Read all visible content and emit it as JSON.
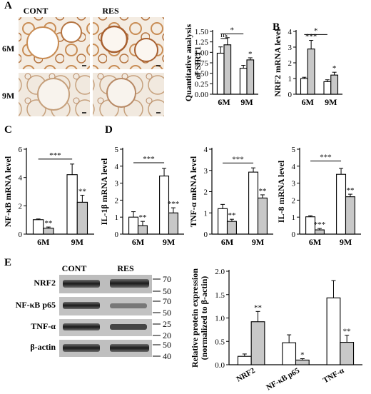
{
  "panels": {
    "A": "A",
    "B": "B",
    "C": "C",
    "D": "D",
    "E": "E"
  },
  "micrograph": {
    "col_labels": [
      "CONT",
      "RES"
    ],
    "row_labels": [
      "6M",
      "9M"
    ]
  },
  "colors": {
    "cont": "#ffffff",
    "res": "#c8c8c8",
    "stroke": "#000000"
  },
  "chart_data": [
    {
      "id": "sirt1",
      "type": "bar",
      "title": "",
      "ylabel": "Quantitative analysis of SIRT1",
      "categories": [
        "6M",
        "9M"
      ],
      "ylim": [
        0,
        1.5
      ],
      "yticks": [
        "0.00",
        "0.25",
        "0.50",
        "0.75",
        "1.00",
        "1.25",
        "1.50"
      ],
      "yticks_v": [
        0,
        0.25,
        0.5,
        0.75,
        1,
        1.25,
        1.5
      ],
      "series": [
        {
          "values": [
            0.98,
            0.62
          ],
          "err": [
            0.15,
            0.07
          ]
        },
        {
          "values": [
            1.18,
            0.82
          ],
          "err": [
            0.17,
            0.05
          ]
        }
      ],
      "sig": [
        "",
        "*"
      ],
      "brackets": [
        {
          "text": "ns",
          "from": [
            0,
            0
          ],
          "to": [
            0,
            1
          ],
          "y": 1.33
        },
        {
          "text": "*",
          "from": [
            0,
            0
          ],
          "to": [
            1,
            0
          ],
          "y": 1.44
        }
      ]
    },
    {
      "id": "nrf2",
      "type": "bar",
      "title": "",
      "ylabel": "NRF2 mRNA level",
      "categories": [
        "6M",
        "9M"
      ],
      "ylim": [
        0,
        4
      ],
      "yticks": [
        "0",
        "1",
        "2",
        "3",
        "4"
      ],
      "yticks_v": [
        0,
        1,
        2,
        3,
        4
      ],
      "series": [
        {
          "values": [
            1.0,
            0.8
          ],
          "err": [
            0.08,
            0.12
          ]
        },
        {
          "values": [
            2.88,
            1.22
          ],
          "err": [
            0.55,
            0.18
          ]
        }
      ],
      "sig": [
        "***",
        "*"
      ],
      "brackets": [
        {
          "text": "*",
          "from": [
            0,
            0
          ],
          "to": [
            1,
            0
          ],
          "y": 3.8
        }
      ]
    },
    {
      "id": "nfkb",
      "type": "bar",
      "title": "",
      "ylabel": "NF-κB mRNA level",
      "categories": [
        "6M",
        "9M"
      ],
      "ylim": [
        0,
        6
      ],
      "yticks": [
        "0",
        "2",
        "4",
        "6"
      ],
      "yticks_v": [
        0,
        2,
        4,
        6
      ],
      "series": [
        {
          "values": [
            1.02,
            4.2
          ],
          "err": [
            0.05,
            0.75
          ]
        },
        {
          "values": [
            0.42,
            2.25
          ],
          "err": [
            0.08,
            0.5
          ]
        }
      ],
      "sig": [
        "**",
        "**"
      ],
      "brackets": [
        {
          "text": "***",
          "from": [
            0,
            0
          ],
          "to": [
            1,
            0
          ],
          "y": 5.3
        }
      ]
    },
    {
      "id": "il1b",
      "type": "bar",
      "title": "",
      "ylabel": "IL-1β mRNA level",
      "categories": [
        "6M",
        "9M"
      ],
      "ylim": [
        0,
        5
      ],
      "yticks": [
        "0",
        "1",
        "2",
        "3",
        "4",
        "5"
      ],
      "yticks_v": [
        0,
        1,
        2,
        3,
        4,
        5
      ],
      "series": [
        {
          "values": [
            1.0,
            3.42
          ],
          "err": [
            0.32,
            0.45
          ]
        },
        {
          "values": [
            0.5,
            1.25
          ],
          "err": [
            0.25,
            0.3
          ]
        }
      ],
      "sig": [
        "**",
        "***"
      ],
      "brackets": [
        {
          "text": "***",
          "from": [
            0,
            0
          ],
          "to": [
            1,
            0
          ],
          "y": 4.2
        }
      ]
    },
    {
      "id": "tnfa",
      "type": "bar",
      "title": "",
      "ylabel": "TNF-α mRNA level",
      "categories": [
        "6M",
        "9M"
      ],
      "ylim": [
        0,
        4
      ],
      "yticks": [
        "0",
        "1",
        "2",
        "3",
        "4"
      ],
      "yticks_v": [
        0,
        1,
        2,
        3,
        4
      ],
      "series": [
        {
          "values": [
            1.2,
            2.92
          ],
          "err": [
            0.2,
            0.2
          ]
        },
        {
          "values": [
            0.6,
            1.7
          ],
          "err": [
            0.1,
            0.15
          ]
        }
      ],
      "sig": [
        "**",
        "**"
      ],
      "brackets": [
        {
          "text": "***",
          "from": [
            0,
            0
          ],
          "to": [
            1,
            0
          ],
          "y": 3.35
        }
      ]
    },
    {
      "id": "il8",
      "type": "bar",
      "title": "",
      "ylabel": "IL-8 mRNA level",
      "categories": [
        "6M",
        "9M"
      ],
      "ylim": [
        0,
        5
      ],
      "yticks": [
        "0",
        "1",
        "2",
        "3",
        "4",
        "5"
      ],
      "yticks_v": [
        0,
        1,
        2,
        3,
        4,
        5
      ],
      "series": [
        {
          "values": [
            1.02,
            3.52
          ],
          "err": [
            0.06,
            0.35
          ]
        },
        {
          "values": [
            0.25,
            2.2
          ],
          "err": [
            0.08,
            0.15
          ]
        }
      ],
      "sig": [
        "***",
        "**"
      ],
      "brackets": [
        {
          "text": "***",
          "from": [
            0,
            0
          ],
          "to": [
            1,
            0
          ],
          "y": 4.3
        }
      ]
    },
    {
      "id": "protein",
      "type": "bar",
      "title": "",
      "ylabel": "Relative protein expression (normalized to β-actin)",
      "categories": [
        "NRF2",
        "NF-κB p65",
        "TNF-α"
      ],
      "ylim": [
        0,
        2
      ],
      "yticks": [
        "0.0",
        "0.5",
        "1.0",
        "1.5",
        "2.0"
      ],
      "yticks_v": [
        0,
        0.5,
        1,
        1.5,
        2
      ],
      "series": [
        {
          "values": [
            0.18,
            0.47,
            1.43
          ],
          "err": [
            0.05,
            0.17,
            0.37
          ]
        },
        {
          "values": [
            0.92,
            0.1,
            0.48
          ],
          "err": [
            0.22,
            0.03,
            0.15
          ]
        }
      ],
      "sig": [
        "**",
        "*",
        "**"
      ],
      "brackets": []
    }
  ],
  "blot": {
    "headers": [
      "CONT",
      "RES"
    ],
    "bands": [
      "NRF2",
      "NF-κB p65",
      "TNF-α",
      "β-actin"
    ],
    "markers": [
      [
        "70",
        "50"
      ],
      [
        "70",
        "50"
      ],
      [
        "25",
        "20"
      ],
      [
        "50",
        "40"
      ]
    ]
  }
}
